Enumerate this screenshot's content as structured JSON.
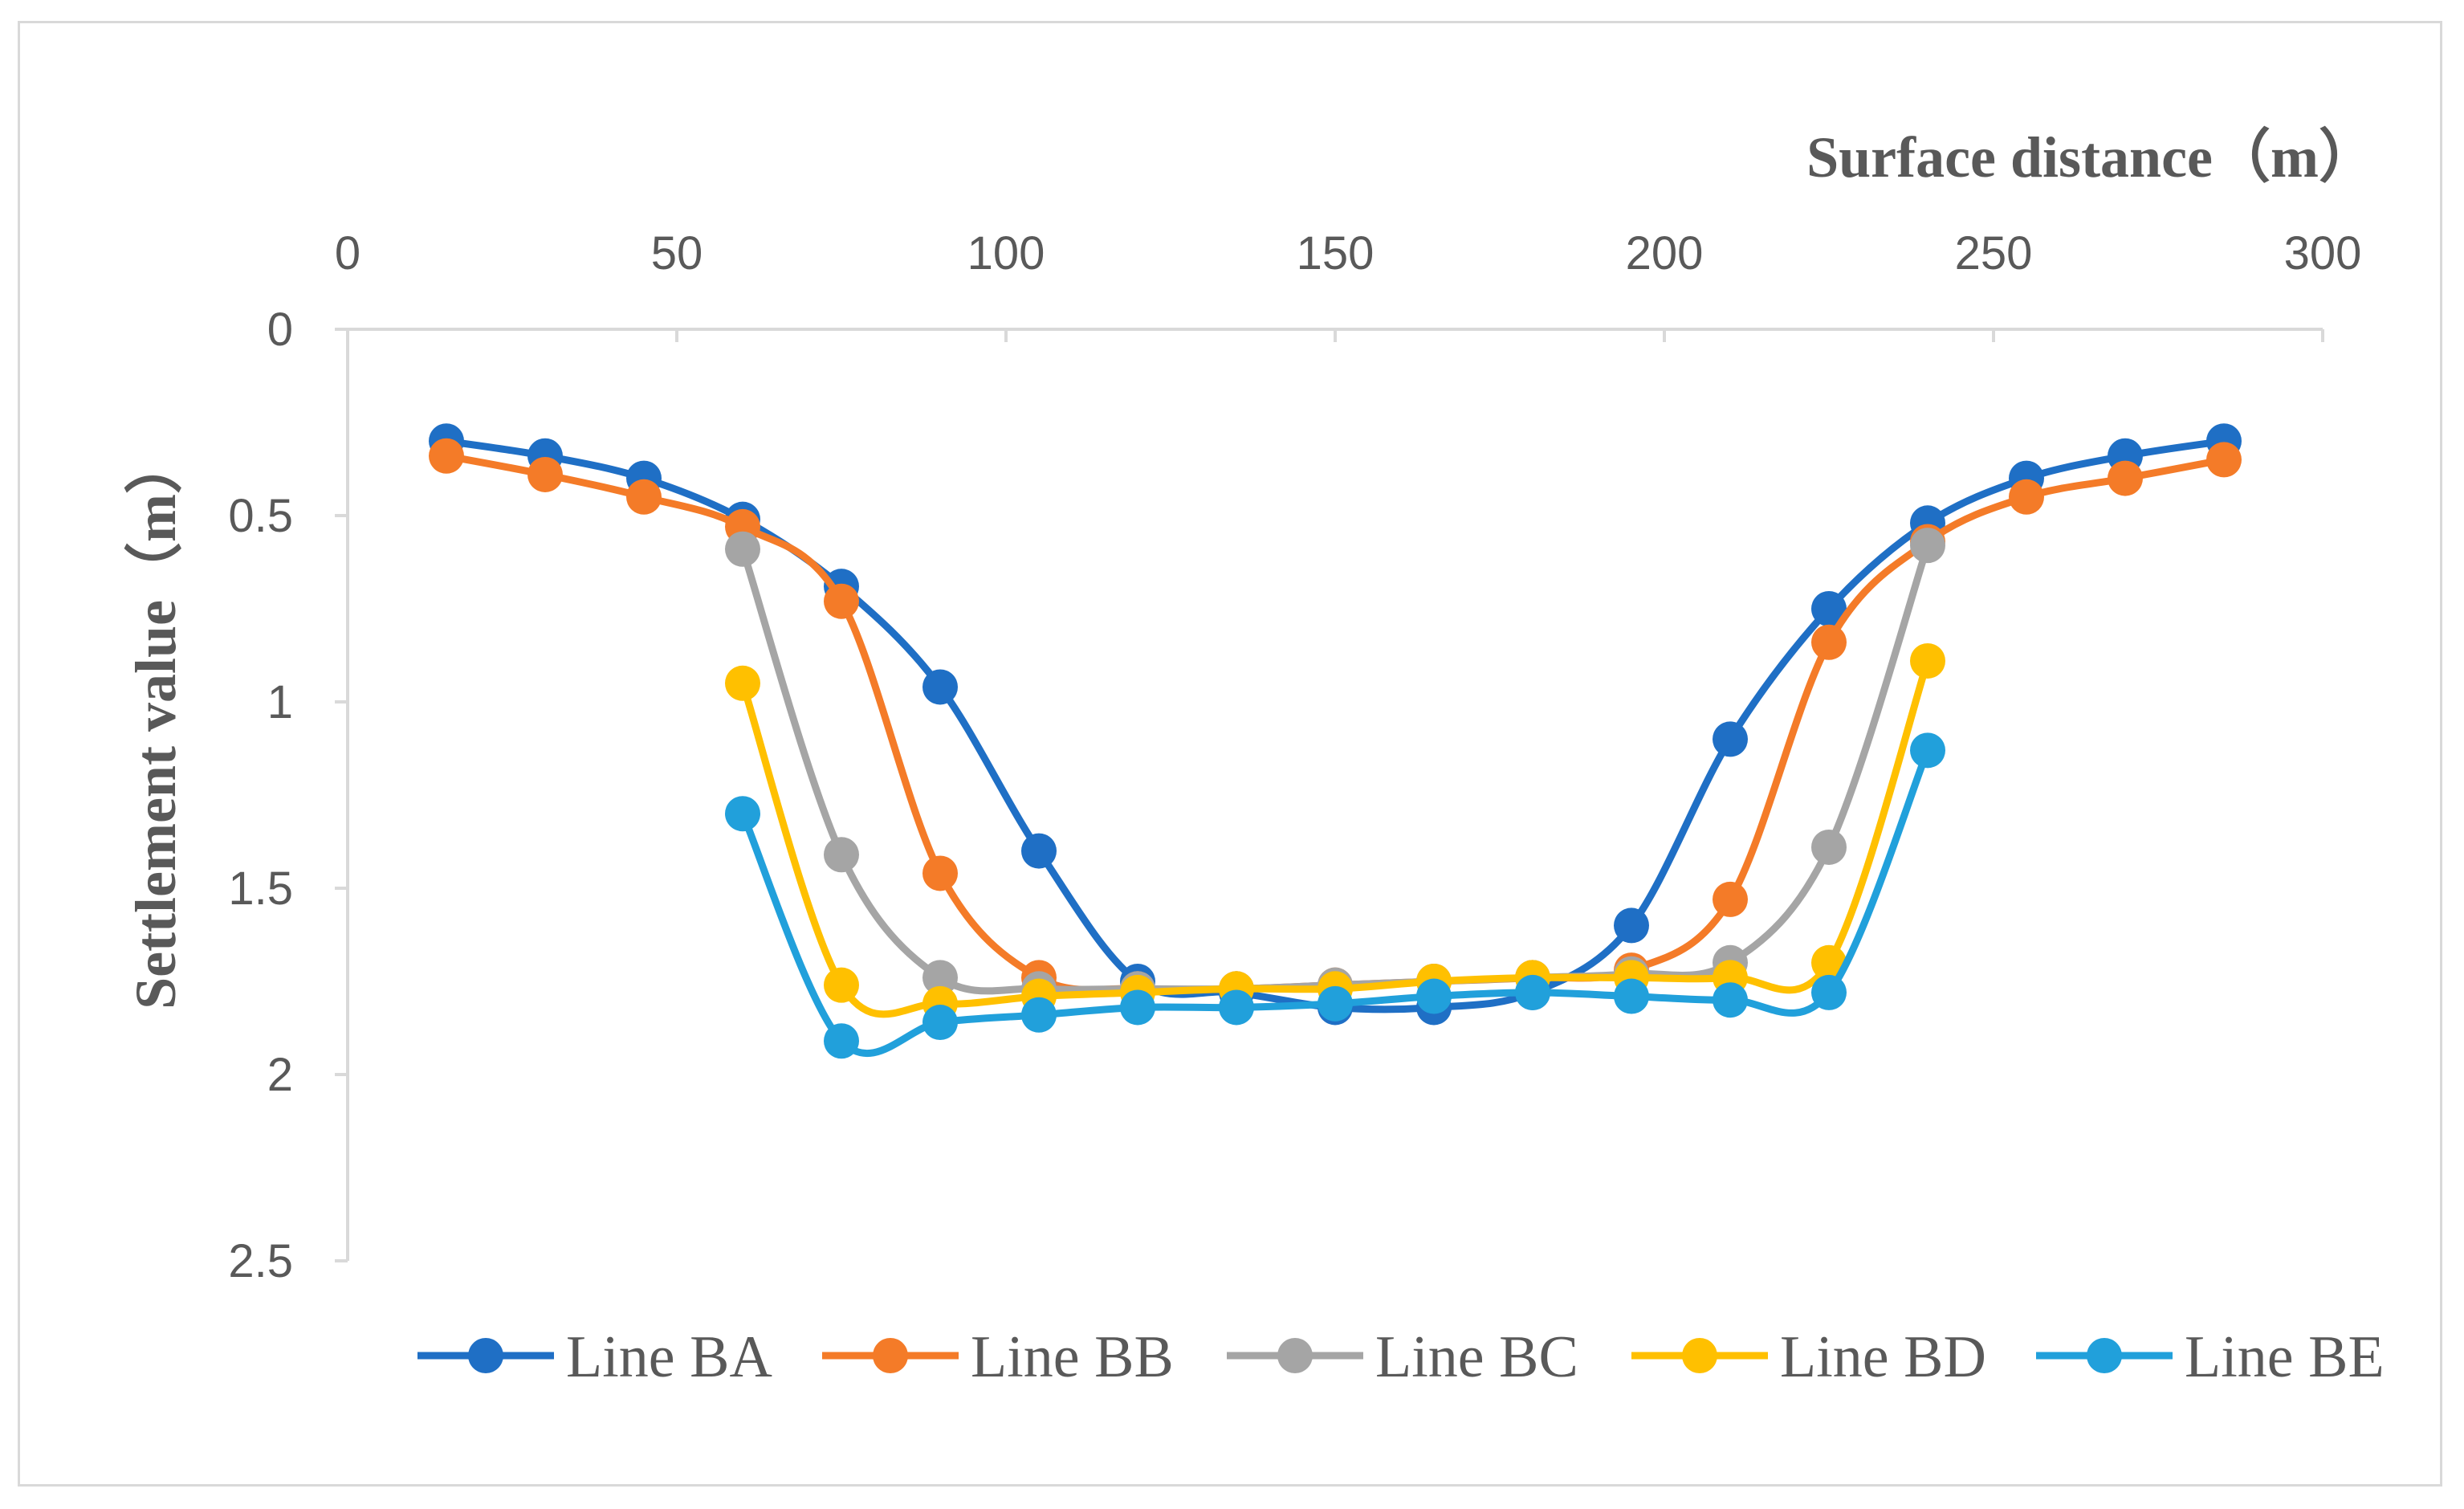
{
  "chart_data": {
    "type": "line",
    "title": "",
    "xlabel": "Surface distance（m）",
    "ylabel": "Settlement value（m）",
    "xlim": [
      0,
      300
    ],
    "ylim": [
      0,
      2.5
    ],
    "y_inverted": true,
    "x_axis_position": "top",
    "xticks": [
      "0",
      "50",
      "100",
      "150",
      "200",
      "250",
      "300"
    ],
    "yticks": [
      "0",
      "0.5",
      "1",
      "1.5",
      "2",
      "2.5"
    ],
    "grid": false,
    "legend_position": "bottom",
    "series": [
      {
        "name": "Line BA",
        "color": "#1f6fc5",
        "x": [
          15,
          30,
          45,
          60,
          75,
          90,
          105,
          120,
          135,
          150,
          165,
          180,
          195,
          210,
          225,
          240,
          255,
          270,
          285
        ],
        "values": [
          0.3,
          0.34,
          0.4,
          0.51,
          0.69,
          0.96,
          1.4,
          1.75,
          1.78,
          1.82,
          1.82,
          1.78,
          1.6,
          1.1,
          0.75,
          0.52,
          0.4,
          0.34,
          0.3
        ]
      },
      {
        "name": "Line BB",
        "color": "#f47b28",
        "x": [
          15,
          30,
          45,
          60,
          75,
          90,
          105,
          120,
          135,
          150,
          165,
          180,
          195,
          210,
          225,
          240,
          255,
          270,
          285
        ],
        "values": [
          0.34,
          0.39,
          0.45,
          0.53,
          0.73,
          1.46,
          1.74,
          1.77,
          1.77,
          1.76,
          1.75,
          1.74,
          1.72,
          1.53,
          0.84,
          0.57,
          0.45,
          0.4,
          0.35
        ]
      },
      {
        "name": "Line BC",
        "color": "#a5a5a5",
        "x": [
          60,
          75,
          90,
          105,
          120,
          135,
          150,
          165,
          180,
          195,
          210,
          225,
          240
        ],
        "values": [
          0.59,
          1.41,
          1.74,
          1.77,
          1.77,
          1.77,
          1.76,
          1.75,
          1.74,
          1.73,
          1.7,
          1.39,
          0.58
        ]
      },
      {
        "name": "Line BD",
        "color": "#ffc000",
        "x": [
          60,
          75,
          90,
          105,
          120,
          135,
          150,
          165,
          180,
          195,
          210,
          225,
          240
        ],
        "values": [
          0.95,
          1.76,
          1.81,
          1.79,
          1.78,
          1.77,
          1.77,
          1.75,
          1.74,
          1.74,
          1.74,
          1.7,
          0.89
        ]
      },
      {
        "name": "Line BE",
        "color": "#21a0db",
        "x": [
          60,
          75,
          90,
          105,
          120,
          135,
          150,
          165,
          180,
          195,
          210,
          225,
          240
        ],
        "values": [
          1.3,
          1.91,
          1.86,
          1.84,
          1.82,
          1.82,
          1.81,
          1.79,
          1.78,
          1.79,
          1.8,
          1.78,
          1.13
        ]
      }
    ]
  }
}
